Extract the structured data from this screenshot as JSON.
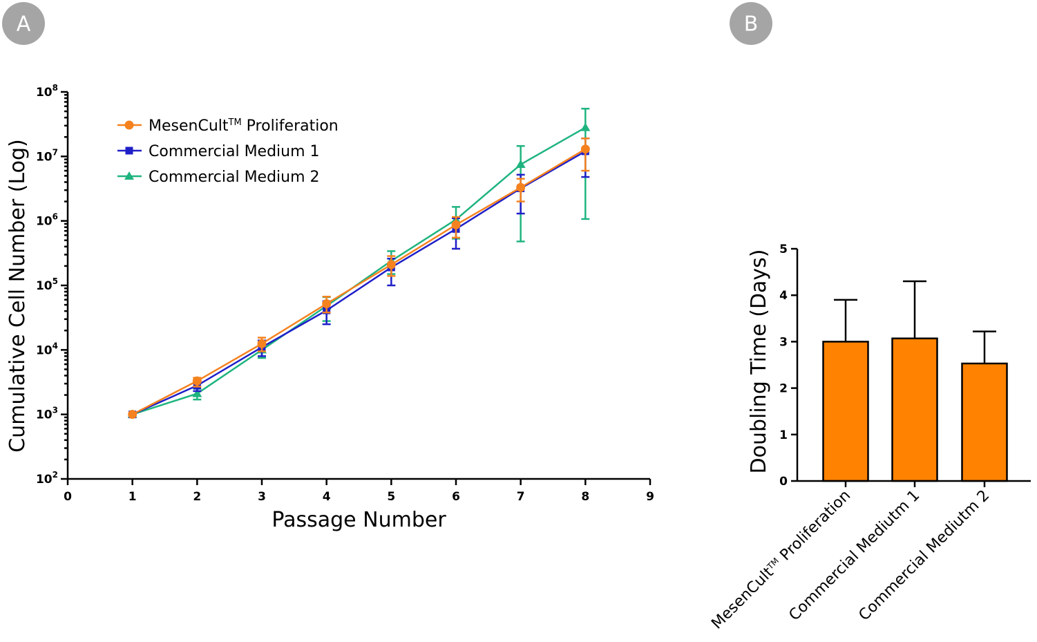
{
  "panels": {
    "a_label": "A",
    "b_label": "B"
  },
  "chart_data": [
    {
      "type": "line",
      "panel": "A",
      "title": "",
      "xlabel": "Passage Number",
      "ylabel": "Cumulative Cell Number (Log)",
      "xlim": [
        0,
        9
      ],
      "ylim": [
        100,
        100000000
      ],
      "y_scale": "log",
      "x_ticks": [
        "0",
        "1",
        "2",
        "3",
        "4",
        "5",
        "6",
        "7",
        "8",
        "9"
      ],
      "y_ticks": [
        {
          "base": "10",
          "exp": "2",
          "value": 100
        },
        {
          "base": "10",
          "exp": "3",
          "value": 1000
        },
        {
          "base": "10",
          "exp": "4",
          "value": 10000
        },
        {
          "base": "10",
          "exp": "5",
          "value": 100000
        },
        {
          "base": "10",
          "exp": "6",
          "value": 1000000
        },
        {
          "base": "10",
          "exp": "7",
          "value": 10000000
        },
        {
          "base": "10",
          "exp": "8",
          "value": 100000000
        }
      ],
      "legend_position": "top-left",
      "grid": false,
      "x": [
        1,
        2,
        3,
        4,
        5,
        6,
        7,
        8
      ],
      "series": [
        {
          "name": "MesenCult™ Proliferation",
          "legend_main": "MesenCult",
          "legend_sup": "TM",
          "legend_rest": " Proliferation",
          "color": "#f5821f",
          "marker": "circle",
          "values": [
            1000,
            3300,
            12500,
            52000,
            210000,
            870000,
            3300000,
            13000000
          ],
          "err_low": [
            1000,
            2700,
            9500,
            38000,
            140000,
            550000,
            2000000,
            6000000
          ],
          "err_high": [
            1000,
            3700,
            15500,
            67000,
            285000,
            1150000,
            4500000,
            19000000
          ]
        },
        {
          "name": "Commercial Medium 1",
          "color": "#1f1fc8",
          "marker": "square",
          "values": [
            1000,
            2800,
            11000,
            41000,
            190000,
            750000,
            3200000,
            12000000
          ],
          "err_low": [
            1000,
            2300,
            8000,
            25000,
            100000,
            370000,
            1300000,
            4800000
          ],
          "err_high": [
            1000,
            3300,
            14000,
            57000,
            260000,
            1100000,
            5200000,
            19000000
          ]
        },
        {
          "name": "Commercial Medium 2",
          "color": "#1fb47f",
          "marker": "triangle",
          "values": [
            1000,
            2100,
            10000,
            48000,
            240000,
            1050000,
            7500000,
            28000000
          ],
          "err_low": [
            1000,
            1700,
            7500,
            28000,
            150000,
            530000,
            480000,
            1070000
          ],
          "err_high": [
            1000,
            2500,
            13000,
            66000,
            340000,
            1650000,
            14500000,
            55000000
          ]
        }
      ]
    },
    {
      "type": "bar",
      "panel": "B",
      "title": "",
      "xlabel": "",
      "ylabel": "Doubling Time (Days)",
      "ylim": [
        0,
        5
      ],
      "y_ticks": [
        "0",
        "1",
        "2",
        "3",
        "4",
        "5"
      ],
      "categories": [
        "MesenCult™ Proliferation",
        "Commercial Mediutm 1",
        "Commercial Mediutm 2"
      ],
      "category_parts": [
        {
          "main": "MesenCult",
          "sup": "TM",
          "rest": " Proliferation"
        },
        {
          "main": "Commercial Mediutm 1",
          "sup": "",
          "rest": ""
        },
        {
          "main": "Commercial Mediutm 2",
          "sup": "",
          "rest": ""
        }
      ],
      "values": [
        3.0,
        3.07,
        2.53
      ],
      "err_high": [
        3.9,
        4.3,
        3.22
      ],
      "bar_color": "#ff8200"
    }
  ]
}
